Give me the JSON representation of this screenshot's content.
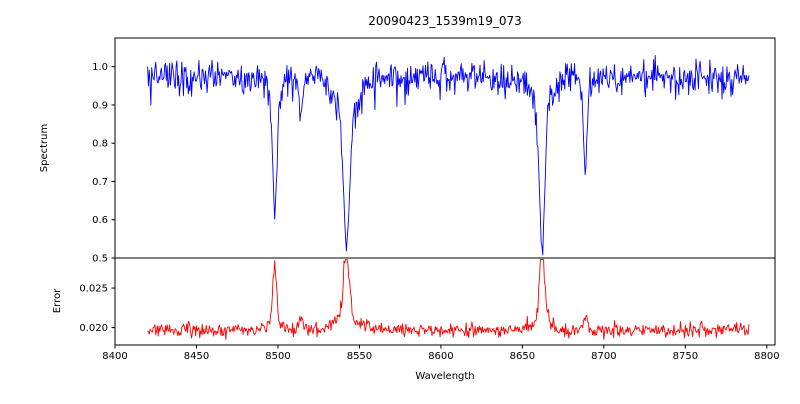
{
  "figure": {
    "background": "#ffffff",
    "axis_color": "#000000"
  },
  "chart_data": {
    "type": "line",
    "title": "20090423_1539m19_073",
    "xlabel": "Wavelength",
    "xlim": [
      8400,
      8805
    ],
    "xticks": {
      "values": [
        8400,
        8450,
        8500,
        8550,
        8600,
        8650,
        8700,
        8750,
        8800
      ],
      "labels": [
        "8400",
        "8450",
        "8500",
        "8550",
        "8600",
        "8650",
        "8700",
        "8750",
        "8800"
      ]
    },
    "x_data_range": [
      8420,
      8789
    ],
    "sample_step": 0.5,
    "seed": 20090423,
    "legend": "none",
    "grid": false,
    "panels": [
      {
        "name": "spectrum",
        "ylabel": "Spectrum",
        "color": "#0000ff",
        "ylim": [
          0.5,
          1.075
        ],
        "yticks": {
          "values": [
            0.5,
            0.6,
            0.7,
            0.8,
            0.9,
            1.0
          ],
          "labels": [
            "0.5",
            "0.6",
            "0.7",
            "0.8",
            "0.9",
            "1.0"
          ]
        },
        "continuum": 0.98,
        "noise_sigma": 0.017,
        "dip_noise": 0.06,
        "absorption_lines": [
          {
            "center": 8498.0,
            "depth": 0.3,
            "sigma": 1.3,
            "wing_depth": 0.06,
            "wing_sigma": 4.0
          },
          {
            "center": 8514.0,
            "depth": 0.09,
            "sigma": 1.4,
            "wing_depth": 0.0,
            "wing_sigma": 1.0
          },
          {
            "center": 8542.1,
            "depth": 0.36,
            "sigma": 1.8,
            "wing_depth": 0.1,
            "wing_sigma": 7.0
          },
          {
            "center": 8662.1,
            "depth": 0.38,
            "sigma": 1.6,
            "wing_depth": 0.08,
            "wing_sigma": 6.0
          },
          {
            "center": 8688.6,
            "depth": 0.23,
            "sigma": 1.1,
            "wing_depth": 0.02,
            "wing_sigma": 3.0
          }
        ]
      },
      {
        "name": "error",
        "ylabel": "Error",
        "color": "#ff0000",
        "ylim": [
          0.0178,
          0.0288
        ],
        "yticks": {
          "values": [
            0.02,
            0.025
          ],
          "labels": [
            "0.020",
            "0.025"
          ]
        },
        "baseline": 0.0196,
        "noise_sigma": 0.00042,
        "spike_noise": 0.0006,
        "peaks": [
          {
            "center": 8498.0,
            "height": 0.0068,
            "sigma": 1.3,
            "wing_height": 0.0008,
            "wing_sigma": 4.0
          },
          {
            "center": 8514.0,
            "height": 0.0012,
            "sigma": 1.5,
            "wing_height": 0.0,
            "wing_sigma": 1.0
          },
          {
            "center": 8542.1,
            "height": 0.0078,
            "sigma": 1.8,
            "wing_height": 0.0018,
            "wing_sigma": 7.0
          },
          {
            "center": 8662.1,
            "height": 0.0088,
            "sigma": 1.6,
            "wing_height": 0.0012,
            "wing_sigma": 5.0
          },
          {
            "center": 8688.6,
            "height": 0.0022,
            "sigma": 1.1,
            "wing_height": 0.0,
            "wing_sigma": 1.0
          }
        ]
      }
    ],
    "features": [
      {
        "wavelength": 8498,
        "spectrum_min": 0.63,
        "error_peak": 0.0265
      },
      {
        "wavelength": 8542,
        "spectrum_min": 0.53,
        "error_peak": 0.0275
      },
      {
        "wavelength": 8662,
        "spectrum_min": 0.53,
        "error_peak": 0.0285
      },
      {
        "wavelength": 8688,
        "spectrum_min": 0.74,
        "error_peak": 0.022
      }
    ]
  }
}
